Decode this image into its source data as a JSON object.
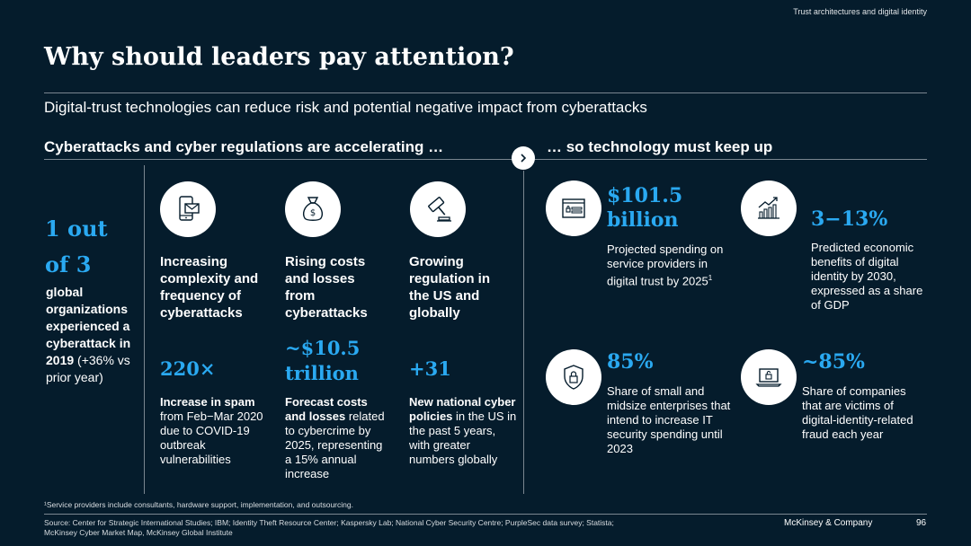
{
  "header": {
    "section_label": "Trust architectures and digital identity",
    "title": "Why should leaders pay attention?",
    "subtitle": "Digital-trust technologies can reduce risk and potential negative impact from cyberattacks"
  },
  "left": {
    "heading": "Cyberattacks and cyber regulations are accelerating …",
    "stat": {
      "line1": "1 out",
      "line2": "of 3",
      "desc_bold": "global organizations experienced a cyberattack in 2019",
      "desc_rest": " (+36% vs prior year)"
    },
    "columns": [
      {
        "icon": "mobile-mail-icon",
        "title": "Increasing complexity and frequency of cyberattacks",
        "value": "220×",
        "desc_bold": "Increase in spam",
        "desc_rest": " from Feb−Mar 2020 due to COVID-19 outbreak vulnerabilities"
      },
      {
        "icon": "money-bag-icon",
        "title": "Rising costs and losses from cyberattacks",
        "value_line1": "~$10.5",
        "value_line2": "trillion",
        "desc_bold": "Forecast costs and losses",
        "desc_rest": " related to cybercrime by 2025, representing a 15% annual increase"
      },
      {
        "icon": "gavel-icon",
        "title": "Growing regulation in the US and globally",
        "value": "+31",
        "desc_bold": "New national cyber policies",
        "desc_rest": " in the US in the past 5 years, with greater numbers globally"
      }
    ]
  },
  "arrow_icon": "chevron-right-icon",
  "right": {
    "heading": "… so technology must keep up",
    "stats": [
      {
        "icon": "browser-login-icon",
        "value_line1": "$101.5",
        "value_line2": "billion",
        "desc": "Projected spending on service providers in digital trust by 2025",
        "footnote_mark": "1"
      },
      {
        "icon": "growth-chart-icon",
        "value": "3−13%",
        "desc": "Predicted economic benefits of digital identity by 2030, expressed as a share of GDP"
      },
      {
        "icon": "shield-lock-icon",
        "value": "85%",
        "desc": "Share of small and midsize enterprises that intend to increase IT security spending until 2023"
      },
      {
        "icon": "laptop-lock-icon",
        "value": "~85%",
        "desc": "Share of companies that are victims of digital-identity-related fraud each year"
      }
    ]
  },
  "footer": {
    "footnote": "¹Service providers include consultants, hardware support, implementation, and outsourcing.",
    "source_line1": "Source: Center for Strategic  International Studies; IBM; Identity Theft Resource Center; Kaspersky Lab; National Cyber Security Centre; PurpleSec data survey; Statista;",
    "source_line2": "McKinsey Cyber Market Map, McKinsey Global Institute",
    "brand": "McKinsey & Company",
    "page_number": "96"
  }
}
